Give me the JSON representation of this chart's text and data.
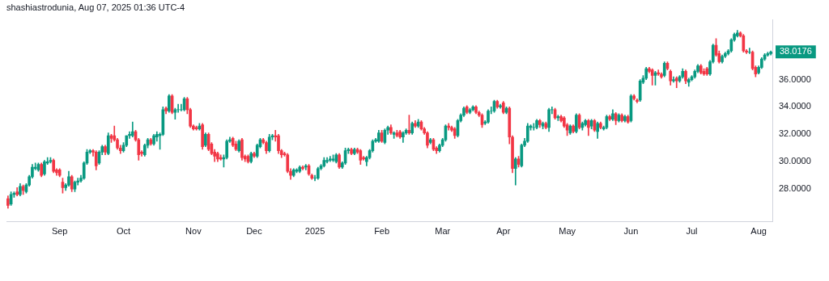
{
  "chart_data": {
    "type": "candlestick",
    "title": "shashiastrodunia, Aug 07, 2025 01:36 UTC-4",
    "categories": [
      null,
      null,
      null,
      null,
      null,
      null,
      null,
      null,
      null,
      null,
      null,
      null,
      null,
      null,
      null,
      null,
      null,
      "Sep",
      null,
      null,
      null,
      null,
      null,
      null,
      null,
      null,
      null,
      null,
      null,
      null,
      null,
      null,
      null,
      null,
      null,
      null,
      null,
      null,
      "Oct",
      null,
      null,
      null,
      null,
      null,
      null,
      null,
      null,
      null,
      null,
      null,
      null,
      null,
      null,
      null,
      null,
      null,
      null,
      null,
      null,
      null,
      null,
      "Nov",
      null,
      null,
      null,
      null,
      null,
      null,
      null,
      null,
      null,
      null,
      null,
      null,
      null,
      null,
      null,
      null,
      null,
      null,
      null,
      "Dec",
      null,
      null,
      null,
      null,
      null,
      null,
      null,
      null,
      null,
      null,
      null,
      null,
      null,
      null,
      null,
      null,
      null,
      null,
      null,
      "2025",
      null,
      null,
      null,
      null,
      null,
      null,
      null,
      null,
      null,
      null,
      null,
      null,
      null,
      null,
      null,
      null,
      null,
      null,
      null,
      null,
      null,
      "Feb",
      null,
      null,
      null,
      null,
      null,
      null,
      null,
      null,
      null,
      null,
      null,
      null,
      null,
      null,
      null,
      null,
      null,
      null,
      null,
      "Mar",
      null,
      null,
      null,
      null,
      null,
      null,
      null,
      null,
      null,
      null,
      null,
      null,
      null,
      null,
      null,
      null,
      null,
      null,
      null,
      "Apr",
      null,
      null,
      null,
      null,
      null,
      null,
      null,
      null,
      null,
      null,
      null,
      null,
      null,
      null,
      null,
      null,
      null,
      null,
      null,
      null,
      "May",
      null,
      null,
      null,
      null,
      null,
      null,
      null,
      null,
      null,
      null,
      null,
      null,
      null,
      null,
      null,
      null,
      null,
      null,
      null,
      null,
      "Jun",
      null,
      null,
      null,
      null,
      null,
      null,
      null,
      null,
      null,
      null,
      null,
      null,
      null,
      null,
      null,
      null,
      null,
      null,
      null,
      "Jul",
      null,
      null,
      null,
      null,
      null,
      null,
      null,
      null,
      null,
      null,
      null,
      null,
      null,
      null,
      null,
      null,
      null,
      null,
      null,
      null,
      null,
      "Aug",
      null,
      null,
      null,
      null
    ],
    "ohlc": [
      [
        27.3,
        27.5,
        26.6,
        26.8
      ],
      [
        26.9,
        27.8,
        26.8,
        27.6
      ],
      [
        27.6,
        27.8,
        27.4,
        27.7
      ],
      [
        27.8,
        28.1,
        27.5,
        27.6
      ],
      [
        27.6,
        28.4,
        27.5,
        28.2
      ],
      [
        28.2,
        28.3,
        27.6,
        27.9
      ],
      [
        27.8,
        28.4,
        27.7,
        28.3
      ],
      [
        28.3,
        29.0,
        28.2,
        28.9
      ],
      [
        28.9,
        29.8,
        28.8,
        29.6
      ],
      [
        29.5,
        29.9,
        29.4,
        29.6
      ],
      [
        29.4,
        29.9,
        29.3,
        29.8
      ],
      [
        29.8,
        29.9,
        28.9,
        29.0
      ],
      [
        29.1,
        30.1,
        29.0,
        30.0
      ],
      [
        29.9,
        30.3,
        29.8,
        30.0
      ],
      [
        30.0,
        30.3,
        29.9,
        30.1
      ],
      [
        30.1,
        30.2,
        29.2,
        29.3
      ],
      [
        29.4,
        29.5,
        29.0,
        29.2
      ],
      [
        29.4,
        29.5,
        28.9,
        29.0
      ],
      [
        28.5,
        28.8,
        27.7,
        28.1
      ],
      [
        28.1,
        28.4,
        27.9,
        28.3
      ],
      [
        28.3,
        29.3,
        28.2,
        28.9
      ],
      [
        28.9,
        29.0,
        27.8,
        28.0
      ],
      [
        28.0,
        28.6,
        27.8,
        28.5
      ],
      [
        28.5,
        28.8,
        28.3,
        28.6
      ],
      [
        28.6,
        29.0,
        28.5,
        28.8
      ],
      [
        28.8,
        30.0,
        28.7,
        29.9
      ],
      [
        29.9,
        30.9,
        29.8,
        30.7
      ],
      [
        30.7,
        30.9,
        30.6,
        30.8
      ],
      [
        30.8,
        30.9,
        30.4,
        30.7
      ],
      [
        30.7,
        30.8,
        29.4,
        29.7
      ],
      [
        29.9,
        30.8,
        29.8,
        30.7
      ],
      [
        30.7,
        31.2,
        30.5,
        31.1
      ],
      [
        31.1,
        31.2,
        30.5,
        30.7
      ],
      [
        30.6,
        32.1,
        30.5,
        31.9
      ],
      [
        31.9,
        32.0,
        31.4,
        31.7
      ],
      [
        31.9,
        32.6,
        31.5,
        31.6
      ],
      [
        31.6,
        31.7,
        30.9,
        31.0
      ],
      [
        31.0,
        31.2,
        30.6,
        30.8
      ],
      [
        30.8,
        31.4,
        30.7,
        31.2
      ],
      [
        31.2,
        31.9,
        31.1,
        31.9
      ],
      [
        31.9,
        32.2,
        31.7,
        32.0
      ],
      [
        31.9,
        32.9,
        31.8,
        32.2
      ],
      [
        32.2,
        32.3,
        31.5,
        31.6
      ],
      [
        31.6,
        31.7,
        30.1,
        30.5
      ],
      [
        30.7,
        30.8,
        30.4,
        30.6
      ],
      [
        30.5,
        31.3,
        30.4,
        31.2
      ],
      [
        31.2,
        31.7,
        31.0,
        31.6
      ],
      [
        31.6,
        31.7,
        31.2,
        31.3
      ],
      [
        31.3,
        32.0,
        31.2,
        31.9
      ],
      [
        31.8,
        32.2,
        31.5,
        32.0
      ],
      [
        31.9,
        32.1,
        30.9,
        32.0
      ],
      [
        32.0,
        34.0,
        31.9,
        33.8
      ],
      [
        33.9,
        34.0,
        33.5,
        33.7
      ],
      [
        33.7,
        34.9,
        33.6,
        34.8
      ],
      [
        34.8,
        34.9,
        33.5,
        33.6
      ],
      [
        33.6,
        33.9,
        33.1,
        33.8
      ],
      [
        33.8,
        34.2,
        33.6,
        33.8
      ],
      [
        33.8,
        34.2,
        33.7,
        33.8
      ],
      [
        33.8,
        34.7,
        33.7,
        34.6
      ],
      [
        34.6,
        34.7,
        33.5,
        33.8
      ],
      [
        33.8,
        33.9,
        32.5,
        32.6
      ],
      [
        32.6,
        32.7,
        32.3,
        32.4
      ],
      [
        32.5,
        32.6,
        32.3,
        32.4
      ],
      [
        32.4,
        32.8,
        32.3,
        32.6
      ],
      [
        32.7,
        32.8,
        30.9,
        31.1
      ],
      [
        31.2,
        32.1,
        31.1,
        32.0
      ],
      [
        32.0,
        32.1,
        30.8,
        30.9
      ],
      [
        31.3,
        31.4,
        30.5,
        30.6
      ],
      [
        30.7,
        30.9,
        30.0,
        30.4
      ],
      [
        30.6,
        30.7,
        30.0,
        30.2
      ],
      [
        30.3,
        30.5,
        30.1,
        30.2
      ],
      [
        30.2,
        30.5,
        29.6,
        30.3
      ],
      [
        30.3,
        31.6,
        30.2,
        31.5
      ],
      [
        31.5,
        31.8,
        31.4,
        31.6
      ],
      [
        31.7,
        31.8,
        31.1,
        31.2
      ],
      [
        31.3,
        31.5,
        30.8,
        30.9
      ],
      [
        30.8,
        31.6,
        30.7,
        31.5
      ],
      [
        31.6,
        31.7,
        30.1,
        30.3
      ],
      [
        30.4,
        30.5,
        30.0,
        30.2
      ],
      [
        30.4,
        30.5,
        29.9,
        30.0
      ],
      [
        30.0,
        30.7,
        29.9,
        30.6
      ],
      [
        30.6,
        30.7,
        30.3,
        30.4
      ],
      [
        30.4,
        31.3,
        30.3,
        31.2
      ],
      [
        31.1,
        31.7,
        31.0,
        31.6
      ],
      [
        31.6,
        31.7,
        31.3,
        31.4
      ],
      [
        31.4,
        31.5,
        30.6,
        30.8
      ],
      [
        30.8,
        32.0,
        30.7,
        31.8
      ],
      [
        31.8,
        32.0,
        31.6,
        31.9
      ],
      [
        31.9,
        32.3,
        31.5,
        31.8
      ],
      [
        31.9,
        32.0,
        30.6,
        30.8
      ],
      [
        30.8,
        30.9,
        30.3,
        30.5
      ],
      [
        30.6,
        30.7,
        30.4,
        30.5
      ],
      [
        30.5,
        30.6,
        29.2,
        29.3
      ],
      [
        29.3,
        29.5,
        28.7,
        29.0
      ],
      [
        29.0,
        29.5,
        28.9,
        29.4
      ],
      [
        29.3,
        29.5,
        29.2,
        29.4
      ],
      [
        29.3,
        29.7,
        29.2,
        29.6
      ],
      [
        29.6,
        29.7,
        29.4,
        29.5
      ],
      [
        29.6,
        29.8,
        29.4,
        29.7
      ],
      [
        29.7,
        29.8,
        29.0,
        29.1
      ],
      [
        29.0,
        29.1,
        28.7,
        28.8
      ],
      [
        28.8,
        29.0,
        28.6,
        28.8
      ],
      [
        28.8,
        29.6,
        28.7,
        29.5
      ],
      [
        29.5,
        29.8,
        29.4,
        29.7
      ],
      [
        29.7,
        30.3,
        29.6,
        30.1
      ],
      [
        30.0,
        30.3,
        29.9,
        30.1
      ],
      [
        30.1,
        30.4,
        30.0,
        30.2
      ],
      [
        30.1,
        30.5,
        30.0,
        30.2
      ],
      [
        30.0,
        30.6,
        29.9,
        30.5
      ],
      [
        30.5,
        30.6,
        29.5,
        29.6
      ],
      [
        29.6,
        30.0,
        29.5,
        29.9
      ],
      [
        29.9,
        31.0,
        29.8,
        30.8
      ],
      [
        30.8,
        31.0,
        30.6,
        30.9
      ],
      [
        30.9,
        31.0,
        30.5,
        30.6
      ],
      [
        30.6,
        31.0,
        30.5,
        30.9
      ],
      [
        30.9,
        31.0,
        30.6,
        30.7
      ],
      [
        30.8,
        30.9,
        29.8,
        30.1
      ],
      [
        30.3,
        30.4,
        30.1,
        30.2
      ],
      [
        30.0,
        30.4,
        29.7,
        30.3
      ],
      [
        30.3,
        30.9,
        30.2,
        30.8
      ],
      [
        30.8,
        31.6,
        30.7,
        31.5
      ],
      [
        31.5,
        31.7,
        31.4,
        31.6
      ],
      [
        31.5,
        32.3,
        31.4,
        32.1
      ],
      [
        32.1,
        32.3,
        31.4,
        31.5
      ],
      [
        31.4,
        32.4,
        31.3,
        32.3
      ],
      [
        32.3,
        32.6,
        32.0,
        32.5
      ],
      [
        32.5,
        32.7,
        32.0,
        32.1
      ],
      [
        32.0,
        32.2,
        31.7,
        32.1
      ],
      [
        32.1,
        32.3,
        31.8,
        31.9
      ],
      [
        32.2,
        32.3,
        31.7,
        31.8
      ],
      [
        31.8,
        32.2,
        31.4,
        32.1
      ],
      [
        32.1,
        32.4,
        32.0,
        32.3
      ],
      [
        32.3,
        33.4,
        32.0,
        32.1
      ],
      [
        32.1,
        32.9,
        32.0,
        32.8
      ],
      [
        32.8,
        33.0,
        32.5,
        32.6
      ],
      [
        32.6,
        33.1,
        32.5,
        32.9
      ],
      [
        32.9,
        33.0,
        32.3,
        32.4
      ],
      [
        32.4,
        32.5,
        32.0,
        32.1
      ],
      [
        32.1,
        32.2,
        31.0,
        31.2
      ],
      [
        31.4,
        31.7,
        31.3,
        31.6
      ],
      [
        31.6,
        31.7,
        30.8,
        30.9
      ],
      [
        31.0,
        31.1,
        30.6,
        30.8
      ],
      [
        30.8,
        31.3,
        30.7,
        31.2
      ],
      [
        31.2,
        31.7,
        31.1,
        31.6
      ],
      [
        31.6,
        32.7,
        31.5,
        32.6
      ],
      [
        32.6,
        32.8,
        32.3,
        32.5
      ],
      [
        32.5,
        32.6,
        32.2,
        32.3
      ],
      [
        32.4,
        32.5,
        31.7,
        31.9
      ],
      [
        31.9,
        33.1,
        31.8,
        33.0
      ],
      [
        33.0,
        33.5,
        32.9,
        33.4
      ],
      [
        33.4,
        34.0,
        33.3,
        33.9
      ],
      [
        34.0,
        34.1,
        33.5,
        33.6
      ],
      [
        33.6,
        33.9,
        33.5,
        33.8
      ],
      [
        33.8,
        34.1,
        33.7,
        34.0
      ],
      [
        34.0,
        34.1,
        33.5,
        33.6
      ],
      [
        33.6,
        33.7,
        33.3,
        33.4
      ],
      [
        33.4,
        33.5,
        32.5,
        32.7
      ],
      [
        32.8,
        33.0,
        32.7,
        32.9
      ],
      [
        32.9,
        33.8,
        32.8,
        33.7
      ],
      [
        33.7,
        34.0,
        33.5,
        33.7
      ],
      [
        33.7,
        34.5,
        33.6,
        34.4
      ],
      [
        34.4,
        34.5,
        33.9,
        34.0
      ],
      [
        34.0,
        34.2,
        33.9,
        34.1
      ],
      [
        34.3,
        34.4,
        33.5,
        33.6
      ],
      [
        33.6,
        34.0,
        33.5,
        33.9
      ],
      [
        33.9,
        34.0,
        31.3,
        31.8
      ],
      [
        31.8,
        31.9,
        29.2,
        29.5
      ],
      [
        29.5,
        30.3,
        28.3,
        30.2
      ],
      [
        30.2,
        30.4,
        29.6,
        29.8
      ],
      [
        29.7,
        31.3,
        29.6,
        31.2
      ],
      [
        31.2,
        31.7,
        31.1,
        31.5
      ],
      [
        31.5,
        32.8,
        31.4,
        32.6
      ],
      [
        32.5,
        32.7,
        32.3,
        32.6
      ],
      [
        32.5,
        32.8,
        32.3,
        32.5
      ],
      [
        32.5,
        33.1,
        32.4,
        33.0
      ],
      [
        33.0,
        33.1,
        32.5,
        32.7
      ],
      [
        32.6,
        32.9,
        32.4,
        32.8
      ],
      [
        32.8,
        32.9,
        32.4,
        32.5
      ],
      [
        32.5,
        33.9,
        32.2,
        33.8
      ],
      [
        33.8,
        34.0,
        33.5,
        33.8
      ],
      [
        33.8,
        33.9,
        33.1,
        33.2
      ],
      [
        33.2,
        33.4,
        33.0,
        33.3
      ],
      [
        33.3,
        33.4,
        32.9,
        33.0
      ],
      [
        33.2,
        33.3,
        32.5,
        32.6
      ],
      [
        32.7,
        32.8,
        31.9,
        32.3
      ],
      [
        32.1,
        32.7,
        32.0,
        32.6
      ],
      [
        32.6,
        32.7,
        32.1,
        32.2
      ],
      [
        32.2,
        33.5,
        32.1,
        33.4
      ],
      [
        33.4,
        33.5,
        32.4,
        32.5
      ],
      [
        32.5,
        32.9,
        32.3,
        32.8
      ],
      [
        32.7,
        33.1,
        32.6,
        33.0
      ],
      [
        33.0,
        33.1,
        31.9,
        32.5
      ],
      [
        32.6,
        33.1,
        32.4,
        33.0
      ],
      [
        33.0,
        33.1,
        32.2,
        32.3
      ],
      [
        32.2,
        32.9,
        31.7,
        32.8
      ],
      [
        32.8,
        32.9,
        32.4,
        32.5
      ],
      [
        32.4,
        32.6,
        32.3,
        32.5
      ],
      [
        32.5,
        33.4,
        32.4,
        33.3
      ],
      [
        33.3,
        33.4,
        33.0,
        33.1
      ],
      [
        33.1,
        33.8,
        33.0,
        33.5
      ],
      [
        33.5,
        33.6,
        32.7,
        33.0
      ],
      [
        33.0,
        33.5,
        32.9,
        33.4
      ],
      [
        33.4,
        33.5,
        32.9,
        33.0
      ],
      [
        33.0,
        33.4,
        32.9,
        33.3
      ],
      [
        33.3,
        33.4,
        32.8,
        32.9
      ],
      [
        33.0,
        34.9,
        32.9,
        34.8
      ],
      [
        34.8,
        34.9,
        34.5,
        34.6
      ],
      [
        34.5,
        34.6,
        34.3,
        34.4
      ],
      [
        34.5,
        36.0,
        34.4,
        35.9
      ],
      [
        35.8,
        36.3,
        35.7,
        36.1
      ],
      [
        36.1,
        36.9,
        36.0,
        36.8
      ],
      [
        36.8,
        36.9,
        36.5,
        36.6
      ],
      [
        36.7,
        36.8,
        35.6,
        36.3
      ],
      [
        36.3,
        36.6,
        35.6,
        36.5
      ],
      [
        36.5,
        36.7,
        36.3,
        36.4
      ],
      [
        36.4,
        36.5,
        36.1,
        36.2
      ],
      [
        36.3,
        37.3,
        36.2,
        37.2
      ],
      [
        37.2,
        37.3,
        36.7,
        36.8
      ],
      [
        36.6,
        36.7,
        35.6,
        35.9
      ],
      [
        35.9,
        36.2,
        35.8,
        36.0
      ],
      [
        36.1,
        36.2,
        35.4,
        35.9
      ],
      [
        35.9,
        36.3,
        35.8,
        36.2
      ],
      [
        36.2,
        36.8,
        36.1,
        36.6
      ],
      [
        36.6,
        36.7,
        35.7,
        35.9
      ],
      [
        35.8,
        36.1,
        35.5,
        36.0
      ],
      [
        36.0,
        36.3,
        35.9,
        36.2
      ],
      [
        36.2,
        36.7,
        36.1,
        36.6
      ],
      [
        36.6,
        37.1,
        36.5,
        37.0
      ],
      [
        37.0,
        37.1,
        36.4,
        36.5
      ],
      [
        36.6,
        36.8,
        36.3,
        36.4
      ],
      [
        36.8,
        36.9,
        36.3,
        36.4
      ],
      [
        36.4,
        37.4,
        36.3,
        37.3
      ],
      [
        37.3,
        38.6,
        37.2,
        38.5
      ],
      [
        38.5,
        39.0,
        37.7,
        37.8
      ],
      [
        37.9,
        38.1,
        37.2,
        37.3
      ],
      [
        37.3,
        37.8,
        37.2,
        37.7
      ],
      [
        37.7,
        38.0,
        37.6,
        37.9
      ],
      [
        37.9,
        38.2,
        37.8,
        38.1
      ],
      [
        38.1,
        39.0,
        38.0,
        38.9
      ],
      [
        38.9,
        39.4,
        38.8,
        39.3
      ],
      [
        39.2,
        39.6,
        39.1,
        39.4
      ],
      [
        39.4,
        39.5,
        39.1,
        39.2
      ],
      [
        39.2,
        39.3,
        38.0,
        38.1
      ],
      [
        38.1,
        38.2,
        37.9,
        38.0
      ],
      [
        38.0,
        38.3,
        37.9,
        38.0
      ],
      [
        38.0,
        38.1,
        36.7,
        36.8
      ],
      [
        36.9,
        37.0,
        36.2,
        36.4
      ],
      [
        36.5,
        37.0,
        36.4,
        36.9
      ],
      [
        36.9,
        37.6,
        36.8,
        37.5
      ],
      [
        37.5,
        37.9,
        37.4,
        37.8
      ],
      [
        37.8,
        38.0,
        37.7,
        37.9
      ],
      [
        37.9,
        38.1,
        37.8,
        38.0176
      ]
    ],
    "colors": [
      "#f23645",
      "#089981",
      "#089981",
      "#f23645",
      "#089981",
      "#f23645",
      "#089981",
      "#089981",
      "#089981",
      "#089981",
      "#089981",
      "#f23645",
      "#089981",
      "#089981",
      "#089981",
      "#f23645",
      "#f23645",
      "#f23645",
      "#f23645",
      "#089981",
      "#089981",
      "#f23645",
      "#089981",
      "#089981",
      "#089981",
      "#089981",
      "#089981",
      "#089981",
      "#f23645",
      "#f23645",
      "#089981",
      "#089981",
      "#f23645",
      "#089981",
      "#f23645",
      "#f23645",
      "#f23645",
      "#f23645",
      "#089981",
      "#089981",
      "#089981",
      "#089981",
      "#f23645",
      "#f23645",
      "#f23645",
      "#089981",
      "#089981",
      "#f23645",
      "#089981",
      "#089981",
      "#089981",
      "#089981",
      "#f23645",
      "#089981",
      "#f23645",
      "#089981",
      "#089981",
      "#089981",
      "#089981",
      "#f23645",
      "#f23645",
      "#f23645",
      "#f23645",
      "#089981",
      "#f23645",
      "#089981",
      "#f23645",
      "#f23645",
      "#f23645",
      "#f23645",
      "#f23645",
      "#089981",
      "#089981",
      "#089981",
      "#f23645",
      "#f23645",
      "#089981",
      "#f23645",
      "#f23645",
      "#f23645",
      "#089981",
      "#f23645",
      "#089981",
      "#089981",
      "#f23645",
      "#f23645",
      "#089981",
      "#089981",
      "#f23645",
      "#f23645",
      "#f23645",
      "#f23645",
      "#f23645",
      "#f23645",
      "#089981",
      "#089981",
      "#089981",
      "#f23645",
      "#089981",
      "#f23645",
      "#f23645",
      "#089981",
      "#089981",
      "#089981",
      "#089981",
      "#089981",
      "#089981",
      "#089981",
      "#089981",
      "#f23645",
      "#089981",
      "#089981",
      "#089981",
      "#f23645",
      "#089981",
      "#f23645",
      "#f23645",
      "#f23645",
      "#089981",
      "#089981",
      "#089981",
      "#089981",
      "#089981",
      "#f23645",
      "#089981",
      "#089981",
      "#f23645",
      "#089981",
      "#f23645",
      "#f23645",
      "#089981",
      "#089981",
      "#f23645",
      "#089981",
      "#f23645",
      "#089981",
      "#f23645",
      "#f23645",
      "#f23645",
      "#089981",
      "#f23645",
      "#f23645",
      "#089981",
      "#089981",
      "#089981",
      "#f23645",
      "#f23645",
      "#f23645",
      "#089981",
      "#089981",
      "#089981",
      "#f23645",
      "#089981",
      "#089981",
      "#f23645",
      "#f23645",
      "#f23645",
      "#089981",
      "#089981",
      "#089981",
      "#089981",
      "#f23645",
      "#089981",
      "#f23645",
      "#089981",
      "#f23645",
      "#f23645",
      "#089981",
      "#f23645",
      "#089981",
      "#089981",
      "#089981",
      "#089981",
      "#089981",
      "#089981",
      "#f23645",
      "#089981",
      "#f23645",
      "#089981",
      "#089981",
      "#f23645",
      "#089981",
      "#f23645",
      "#f23645",
      "#f23645",
      "#089981",
      "#f23645",
      "#089981",
      "#f23645",
      "#089981",
      "#089981",
      "#f23645",
      "#089981",
      "#f23645",
      "#089981",
      "#f23645",
      "#089981",
      "#089981",
      "#f23645",
      "#089981",
      "#f23645",
      "#089981",
      "#f23645",
      "#089981",
      "#f23645",
      "#089981",
      "#f23645",
      "#f23645",
      "#089981",
      "#089981",
      "#089981",
      "#f23645",
      "#f23645",
      "#089981",
      "#f23645",
      "#f23645",
      "#089981",
      "#f23645",
      "#f23645",
      "#089981",
      "#f23645",
      "#089981",
      "#089981",
      "#f23645",
      "#089981",
      "#089981",
      "#089981",
      "#089981",
      "#f23645",
      "#f23645",
      "#f23645",
      "#089981",
      "#089981",
      "#f23645",
      "#f23645",
      "#089981",
      "#089981",
      "#089981",
      "#089981",
      "#089981",
      "#089981",
      "#f23645",
      "#f23645",
      "#f23645",
      "#089981",
      "#f23645",
      "#f23645",
      "#089981",
      "#089981",
      "#089981",
      "#089981",
      "#089981"
    ],
    "ylim": [
      25.6,
      40.4
    ],
    "yticks": [
      {
        "value": 28,
        "label": "28.0000"
      },
      {
        "value": 30,
        "label": "30.0000"
      },
      {
        "value": 32,
        "label": "32.0000"
      },
      {
        "value": 34,
        "label": "34.0000"
      },
      {
        "value": 36,
        "label": "36.0000"
      }
    ],
    "annotations": [
      "38.0176"
    ]
  }
}
